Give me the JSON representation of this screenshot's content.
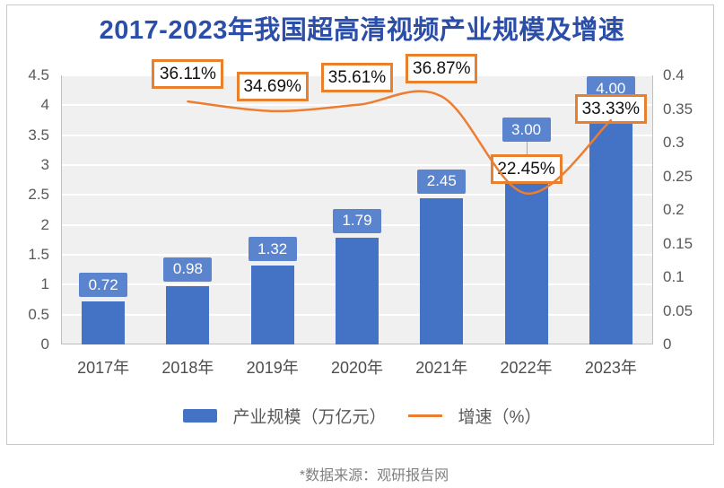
{
  "title": "2017-2023年我国超高清视频产业规模及增速",
  "source_note": "*数据来源：观研报告网",
  "colors": {
    "title": "#2B4EA8",
    "bar": "#4472C4",
    "bar_label_bg": "#5B84CE",
    "line": "#ED7D31",
    "callout_border": "#E8802D",
    "plot_bg": "#F0F0F0",
    "axis_text": "#595959",
    "footer_text": "#808080"
  },
  "legend": [
    {
      "type": "bar",
      "label": "产业规模（万亿元）"
    },
    {
      "type": "line",
      "label": "增速（%）"
    }
  ],
  "chart_data": {
    "type": "bar+line",
    "title": "2017-2023年我国超高清视频产业规模及增速",
    "categories": [
      "2017年",
      "2018年",
      "2019年",
      "2020年",
      "2021年",
      "2022年",
      "2023年"
    ],
    "series": [
      {
        "name": "产业规模（万亿元）",
        "type": "bar",
        "axis": "left",
        "values": [
          0.72,
          0.98,
          1.32,
          1.79,
          2.45,
          3.0,
          4.0
        ],
        "labels": [
          "0.72",
          "0.98",
          "1.32",
          "1.79",
          "2.45",
          "3.00",
          "4.00"
        ]
      },
      {
        "name": "增速（%）",
        "type": "line",
        "axis": "right",
        "x_categories": [
          "2018年",
          "2019年",
          "2020年",
          "2021年",
          "2022年",
          "2023年"
        ],
        "values": [
          0.3611,
          0.3469,
          0.3561,
          0.3687,
          0.2245,
          0.3333
        ],
        "labels": [
          "36.11%",
          "34.69%",
          "35.61%",
          "36.87%",
          "22.45%",
          "33.33%"
        ]
      }
    ],
    "left_axis": {
      "min": 0,
      "max": 4.5,
      "ticks": [
        "0",
        "0.5",
        "1",
        "1.5",
        "2",
        "2.5",
        "3",
        "3.5",
        "4",
        "4.5"
      ]
    },
    "right_axis": {
      "min": 0,
      "max": 0.4,
      "ticks": [
        "0",
        "0.05",
        "0.1",
        "0.15",
        "0.2",
        "0.25",
        "0.3",
        "0.35",
        "0.4"
      ]
    },
    "grid": true,
    "smooth_line": true,
    "legend_position": "bottom"
  }
}
